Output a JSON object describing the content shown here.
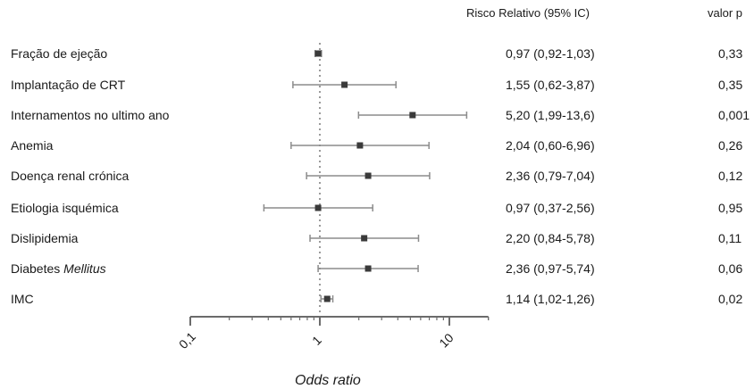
{
  "headers": {
    "rr": "Risco Relativo (95% IC)",
    "p": "valor p"
  },
  "rows": [
    {
      "label": "Fração de ejeção",
      "label_italic": "",
      "rr_text": "0,97 (0,92-1,03)",
      "p": "0,33"
    },
    {
      "label": "Implantação de CRT",
      "label_italic": "",
      "rr_text": "1,55 (0,62-3,87)",
      "p": "0,35"
    },
    {
      "label": "Internamentos no ultimo ano",
      "label_italic": "",
      "rr_text": "5,20 (1,99-13,6)",
      "p": "0,001"
    },
    {
      "label": "Anemia",
      "label_italic": "",
      "rr_text": "2,04 (0,60-6,96)",
      "p": "0,26"
    },
    {
      "label": "Doença renal crónica",
      "label_italic": "",
      "rr_text": "2,36 (0,79-7,04)",
      "p": "0,12"
    },
    {
      "label": "Etiologia isquémica",
      "label_italic": "",
      "rr_text": "0,97 (0,37-2,56)",
      "p": "0,95"
    },
    {
      "label": "Dislipidemia",
      "label_italic": "",
      "rr_text": "2,20 (0,84-5,78)",
      "p": "0,11"
    },
    {
      "label": "Diabetes ",
      "label_italic": "Mellitus",
      "rr_text": "2,36 (0,97-5,74)",
      "p": "0,06"
    },
    {
      "label": "IMC",
      "label_italic": "",
      "rr_text": "1,14 (1,02-1,26)",
      "p": "0,02"
    }
  ],
  "chart_data": {
    "type": "forest",
    "xlabel": "Odds ratio",
    "xscale": "log",
    "xlim": [
      0.1,
      20
    ],
    "xticks": [
      "0,1",
      "1",
      "10"
    ],
    "reference_line": 1,
    "categories": [
      "Fração de ejeção",
      "Implantação de CRT",
      "Internamentos no ultimo ano",
      "Anemia",
      "Doença renal crónica",
      "Etiologia isquémica",
      "Dislipidemia",
      "Diabetes Mellitus",
      "IMC"
    ],
    "estimates": [
      0.97,
      1.55,
      5.2,
      2.04,
      2.36,
      0.97,
      2.2,
      2.36,
      1.14
    ],
    "lower": [
      0.92,
      0.62,
      1.99,
      0.6,
      0.79,
      0.37,
      0.84,
      0.97,
      1.02
    ],
    "upper": [
      1.03,
      3.87,
      13.6,
      6.96,
      7.04,
      2.56,
      5.78,
      5.74,
      1.26
    ],
    "colors": {
      "ci": "#8c8c8c",
      "point": "#3a3a3a",
      "axis": "#6b6b6b",
      "refline": "#9a9a9a"
    }
  }
}
